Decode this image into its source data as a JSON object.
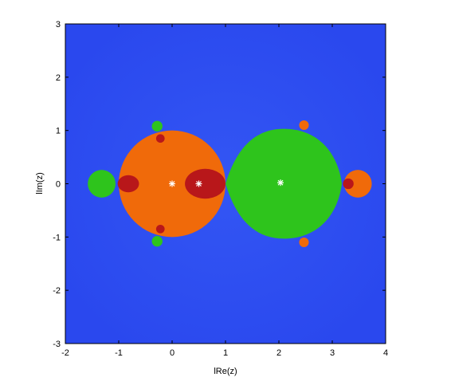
{
  "chart_data": {
    "type": "heatmap",
    "title": "",
    "xlabel": "lRe(z)",
    "ylabel": "lIm(z)",
    "xlim": [
      -2,
      4
    ],
    "ylim": [
      -3,
      3
    ],
    "xticks": [
      "-2",
      "-1",
      "0",
      "1",
      "2",
      "3",
      "4"
    ],
    "yticks": [
      "-3",
      "-2",
      "-1",
      "0",
      "1",
      "2",
      "3"
    ],
    "grid": false,
    "colors": {
      "background": "#2c4cf2",
      "orange": "#f06a0a",
      "green": "#2ec41c",
      "red": "#b8171a",
      "marker": "#ffffff"
    },
    "regions": [
      {
        "color": "orange",
        "shape": "disk",
        "cx": 0.0,
        "cy": 0.0,
        "r": 1.0
      },
      {
        "color": "green",
        "shape": "cardioid",
        "cusp": 1.0,
        "right": 3.18,
        "half_height": 1.03
      },
      {
        "color": "red",
        "shape": "ellipse",
        "cx": 0.62,
        "cy": 0.0,
        "rx": 0.38,
        "ry": 0.28
      },
      {
        "color": "red",
        "shape": "ellipse",
        "cx": -0.82,
        "cy": 0.0,
        "rx": 0.2,
        "ry": 0.16
      },
      {
        "color": "green",
        "shape": "disk",
        "cx": -1.32,
        "cy": 0.0,
        "r": 0.26
      },
      {
        "color": "orange",
        "shape": "disk",
        "cx": 3.48,
        "cy": 0.0,
        "r": 0.26
      },
      {
        "color": "red",
        "shape": "disk",
        "cx": 3.3,
        "cy": 0.0,
        "r": 0.1
      },
      {
        "color": "green",
        "shape": "disk",
        "cx": -0.28,
        "cy": 1.08,
        "r": 0.1
      },
      {
        "color": "green",
        "shape": "disk",
        "cx": -0.28,
        "cy": -1.08,
        "r": 0.1
      },
      {
        "color": "red",
        "shape": "disk",
        "cx": -0.22,
        "cy": 0.85,
        "r": 0.08
      },
      {
        "color": "red",
        "shape": "disk",
        "cx": -0.22,
        "cy": -0.85,
        "r": 0.08
      },
      {
        "color": "orange",
        "shape": "disk",
        "cx": 2.47,
        "cy": 1.1,
        "r": 0.09
      },
      {
        "color": "orange",
        "shape": "disk",
        "cx": 2.47,
        "cy": -1.1,
        "r": 0.09
      }
    ],
    "markers": [
      {
        "x": 0.0,
        "y": 0.0
      },
      {
        "x": 0.5,
        "y": 0.0
      },
      {
        "x": 2.03,
        "y": 0.02
      }
    ]
  }
}
